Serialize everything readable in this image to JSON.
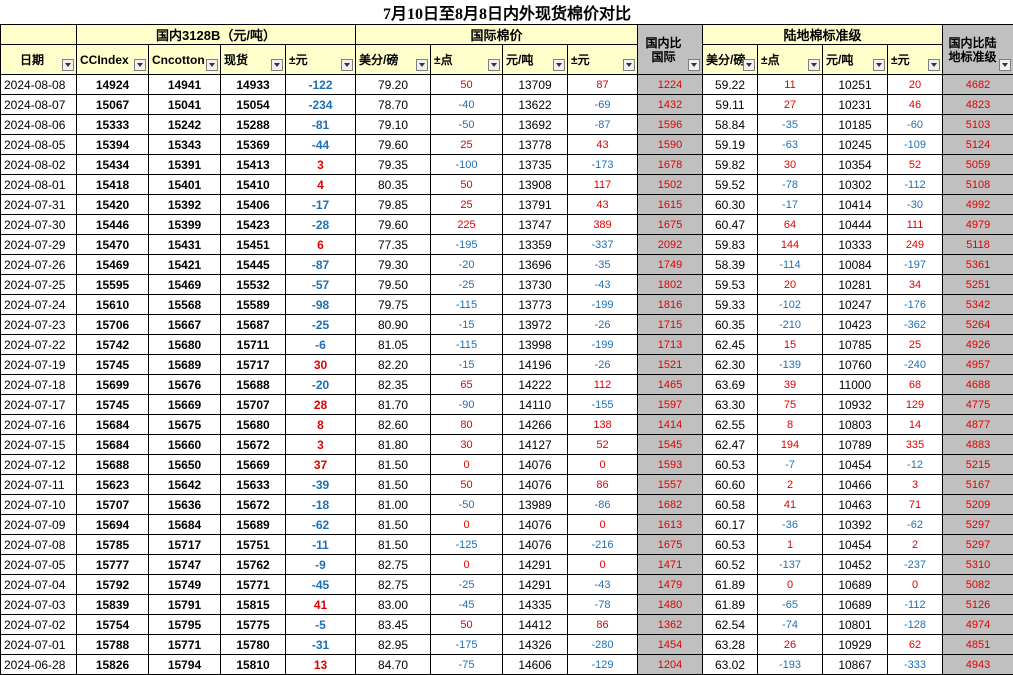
{
  "title": "7月10日至8月8日内外现货棉价对比",
  "groups": {
    "domestic": "国内3128B（元/吨）",
    "international": "国际棉价",
    "ratio1": "国内比国际",
    "land": "陆地棉标准级",
    "ratio2": "国内比陆地标准级"
  },
  "headers": [
    "日期",
    "CCIndex",
    "Cncotton",
    "现货",
    "±元",
    "美分/磅",
    "±点",
    "元/吨",
    "±元",
    "国内比国际",
    "美分/磅",
    "±点",
    "元/吨",
    "±元",
    "国内比陆地标准级"
  ],
  "colors": {
    "header_bg": "#FFFFCC",
    "ratio_bg": "#C0C0C0",
    "positive": "#e00000",
    "negative": "#1F6FB5"
  },
  "rows": [
    [
      "2024-08-08",
      "14924",
      "14941",
      "14933",
      "-122",
      "79.20",
      "50",
      "13709",
      "87",
      "1224",
      "59.22",
      "11",
      "10251",
      "20",
      "4682"
    ],
    [
      "2024-08-07",
      "15067",
      "15041",
      "15054",
      "-234",
      "78.70",
      "-40",
      "13622",
      "-69",
      "1432",
      "59.11",
      "27",
      "10231",
      "46",
      "4823"
    ],
    [
      "2024-08-06",
      "15333",
      "15242",
      "15288",
      "-81",
      "79.10",
      "-50",
      "13692",
      "-87",
      "1596",
      "58.84",
      "-35",
      "10185",
      "-60",
      "5103"
    ],
    [
      "2024-08-05",
      "15394",
      "15343",
      "15369",
      "-44",
      "79.60",
      "25",
      "13778",
      "43",
      "1590",
      "59.19",
      "-63",
      "10245",
      "-109",
      "5124"
    ],
    [
      "2024-08-02",
      "15434",
      "15391",
      "15413",
      "3",
      "79.35",
      "-100",
      "13735",
      "-173",
      "1678",
      "59.82",
      "30",
      "10354",
      "52",
      "5059"
    ],
    [
      "2024-08-01",
      "15418",
      "15401",
      "15410",
      "4",
      "80.35",
      "50",
      "13908",
      "117",
      "1502",
      "59.52",
      "-78",
      "10302",
      "-112",
      "5108"
    ],
    [
      "2024-07-31",
      "15420",
      "15392",
      "15406",
      "-17",
      "79.85",
      "25",
      "13791",
      "43",
      "1615",
      "60.30",
      "-17",
      "10414",
      "-30",
      "4992"
    ],
    [
      "2024-07-30",
      "15446",
      "15399",
      "15423",
      "-28",
      "79.60",
      "225",
      "13747",
      "389",
      "1675",
      "60.47",
      "64",
      "10444",
      "111",
      "4979"
    ],
    [
      "2024-07-29",
      "15470",
      "15431",
      "15451",
      "6",
      "77.35",
      "-195",
      "13359",
      "-337",
      "2092",
      "59.83",
      "144",
      "10333",
      "249",
      "5118"
    ],
    [
      "2024-07-26",
      "15469",
      "15421",
      "15445",
      "-87",
      "79.30",
      "-20",
      "13696",
      "-35",
      "1749",
      "58.39",
      "-114",
      "10084",
      "-197",
      "5361"
    ],
    [
      "2024-07-25",
      "15595",
      "15469",
      "15532",
      "-57",
      "79.50",
      "-25",
      "13730",
      "-43",
      "1802",
      "59.53",
      "20",
      "10281",
      "34",
      "5251"
    ],
    [
      "2024-07-24",
      "15610",
      "15568",
      "15589",
      "-98",
      "79.75",
      "-115",
      "13773",
      "-199",
      "1816",
      "59.33",
      "-102",
      "10247",
      "-176",
      "5342"
    ],
    [
      "2024-07-23",
      "15706",
      "15667",
      "15687",
      "-25",
      "80.90",
      "-15",
      "13972",
      "-26",
      "1715",
      "60.35",
      "-210",
      "10423",
      "-362",
      "5264"
    ],
    [
      "2024-07-22",
      "15742",
      "15680",
      "15711",
      "-6",
      "81.05",
      "-115",
      "13998",
      "-199",
      "1713",
      "62.45",
      "15",
      "10785",
      "25",
      "4926"
    ],
    [
      "2024-07-19",
      "15745",
      "15689",
      "15717",
      "30",
      "82.20",
      "-15",
      "14196",
      "-26",
      "1521",
      "62.30",
      "-139",
      "10760",
      "-240",
      "4957"
    ],
    [
      "2024-07-18",
      "15699",
      "15676",
      "15688",
      "-20",
      "82.35",
      "65",
      "14222",
      "112",
      "1465",
      "63.69",
      "39",
      "11000",
      "68",
      "4688"
    ],
    [
      "2024-07-17",
      "15745",
      "15669",
      "15707",
      "28",
      "81.70",
      "-90",
      "14110",
      "-155",
      "1597",
      "63.30",
      "75",
      "10932",
      "129",
      "4775"
    ],
    [
      "2024-07-16",
      "15684",
      "15675",
      "15680",
      "8",
      "82.60",
      "80",
      "14266",
      "138",
      "1414",
      "62.55",
      "8",
      "10803",
      "14",
      "4877"
    ],
    [
      "2024-07-15",
      "15684",
      "15660",
      "15672",
      "3",
      "81.80",
      "30",
      "14127",
      "52",
      "1545",
      "62.47",
      "194",
      "10789",
      "335",
      "4883"
    ],
    [
      "2024-07-12",
      "15688",
      "15650",
      "15669",
      "37",
      "81.50",
      "0",
      "14076",
      "0",
      "1593",
      "60.53",
      "-7",
      "10454",
      "-12",
      "5215"
    ],
    [
      "2024-07-11",
      "15623",
      "15642",
      "15633",
      "-39",
      "81.50",
      "50",
      "14076",
      "86",
      "1557",
      "60.60",
      "2",
      "10466",
      "3",
      "5167"
    ],
    [
      "2024-07-10",
      "15707",
      "15636",
      "15672",
      "-18",
      "81.00",
      "-50",
      "13989",
      "-86",
      "1682",
      "60.58",
      "41",
      "10463",
      "71",
      "5209"
    ],
    [
      "2024-07-09",
      "15694",
      "15684",
      "15689",
      "-62",
      "81.50",
      "0",
      "14076",
      "0",
      "1613",
      "60.17",
      "-36",
      "10392",
      "-62",
      "5297"
    ],
    [
      "2024-07-08",
      "15785",
      "15717",
      "15751",
      "-11",
      "81.50",
      "-125",
      "14076",
      "-216",
      "1675",
      "60.53",
      "1",
      "10454",
      "2",
      "5297"
    ],
    [
      "2024-07-05",
      "15777",
      "15747",
      "15762",
      "-9",
      "82.75",
      "0",
      "14291",
      "0",
      "1471",
      "60.52",
      "-137",
      "10452",
      "-237",
      "5310"
    ],
    [
      "2024-07-04",
      "15792",
      "15749",
      "15771",
      "-45",
      "82.75",
      "-25",
      "14291",
      "-43",
      "1479",
      "61.89",
      "0",
      "10689",
      "0",
      "5082"
    ],
    [
      "2024-07-03",
      "15839",
      "15791",
      "15815",
      "41",
      "83.00",
      "-45",
      "14335",
      "-78",
      "1480",
      "61.89",
      "-65",
      "10689",
      "-112",
      "5126"
    ],
    [
      "2024-07-02",
      "15754",
      "15795",
      "15775",
      "-5",
      "83.45",
      "50",
      "14412",
      "86",
      "1362",
      "62.54",
      "-74",
      "10801",
      "-128",
      "4974"
    ],
    [
      "2024-07-01",
      "15788",
      "15771",
      "15780",
      "-31",
      "82.95",
      "-175",
      "14326",
      "-280",
      "1454",
      "63.28",
      "26",
      "10929",
      "62",
      "4851"
    ],
    [
      "2024-06-28",
      "15826",
      "15794",
      "15810",
      "13",
      "84.70",
      "-75",
      "14606",
      "-129",
      "1204",
      "63.02",
      "-193",
      "10867",
      "-333",
      "4943"
    ]
  ]
}
